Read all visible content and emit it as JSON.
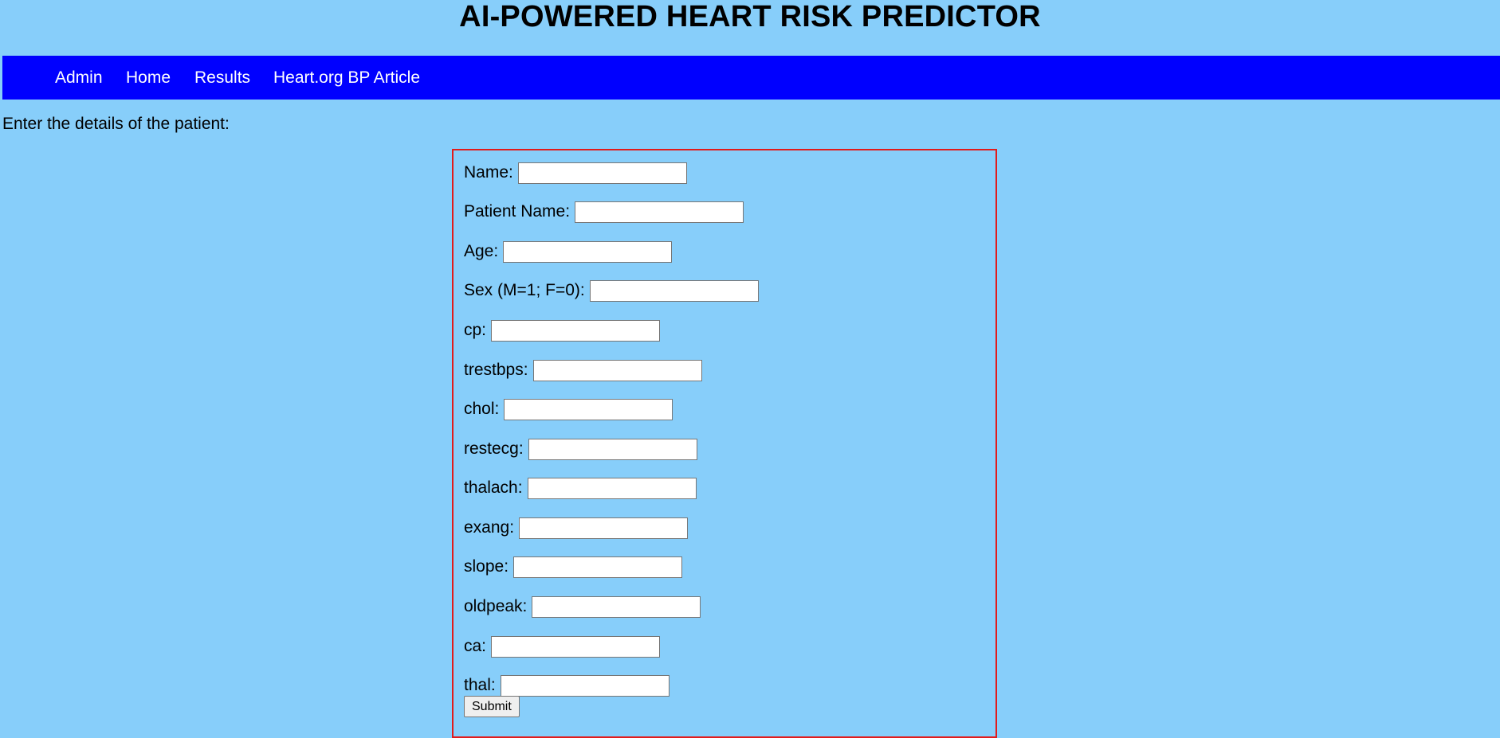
{
  "header": {
    "title": "AI-POWERED HEART RISK PREDICTOR"
  },
  "nav": {
    "items": [
      {
        "label": "Admin"
      },
      {
        "label": "Home"
      },
      {
        "label": "Results"
      },
      {
        "label": "Heart.org BP Article"
      }
    ]
  },
  "main": {
    "intro": "Enter the details of the patient:"
  },
  "form": {
    "fields": [
      {
        "label": "Name:",
        "value": ""
      },
      {
        "label": "Patient Name:",
        "value": ""
      },
      {
        "label": "Age:",
        "value": ""
      },
      {
        "label": "Sex (M=1; F=0):",
        "value": ""
      },
      {
        "label": "cp:",
        "value": ""
      },
      {
        "label": "trestbps:",
        "value": ""
      },
      {
        "label": "chol:",
        "value": ""
      },
      {
        "label": "restecg:",
        "value": ""
      },
      {
        "label": "thalach:",
        "value": ""
      },
      {
        "label": "exang:",
        "value": ""
      },
      {
        "label": "slope:",
        "value": ""
      },
      {
        "label": "oldpeak:",
        "value": ""
      },
      {
        "label": "ca:",
        "value": ""
      },
      {
        "label": "thal:",
        "value": ""
      }
    ],
    "submit_label": "Submit"
  },
  "colors": {
    "background": "#87cefa",
    "nav_background": "#0000ff",
    "form_border": "#e21b1b"
  }
}
